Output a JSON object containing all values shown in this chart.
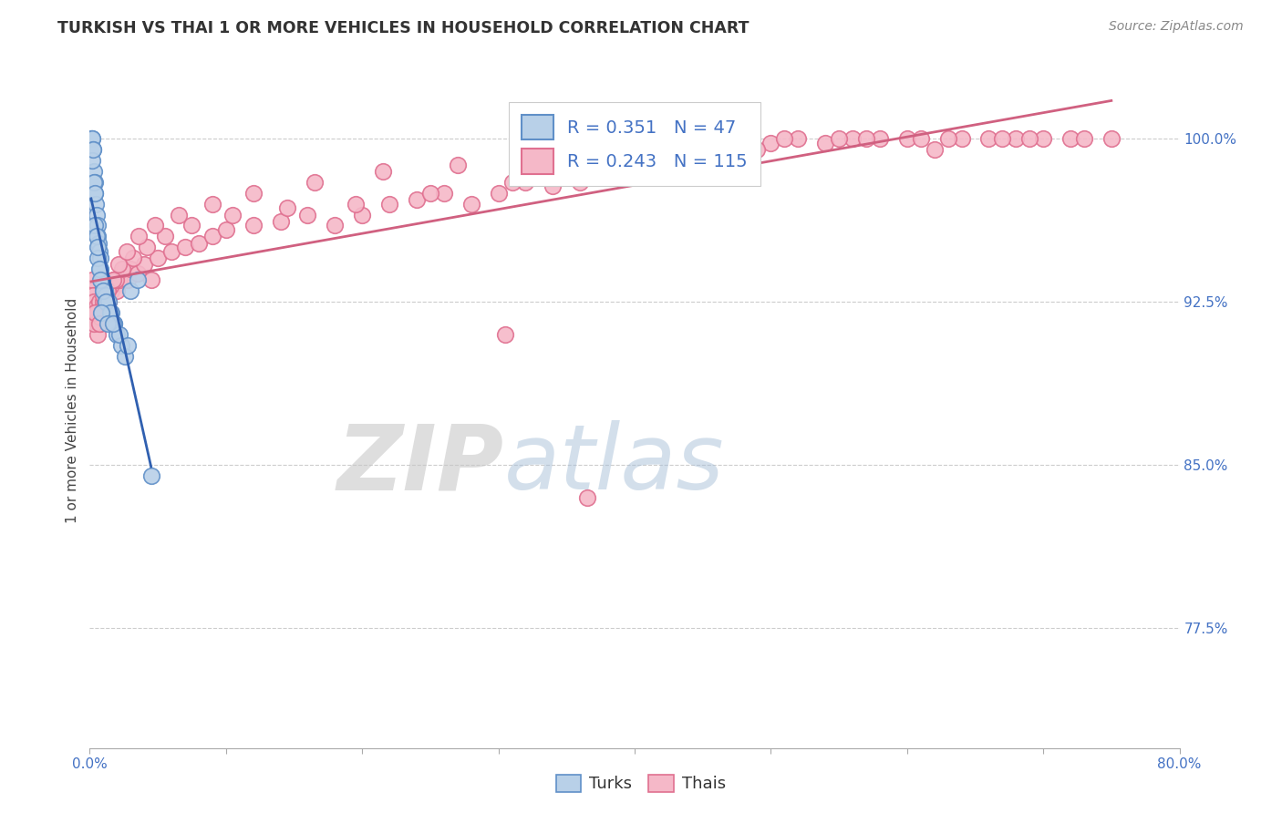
{
  "title": "TURKISH VS THAI 1 OR MORE VEHICLES IN HOUSEHOLD CORRELATION CHART",
  "source": "Source: ZipAtlas.com",
  "ylabel": "1 or more Vehicles in Household",
  "xlim": [
    0.0,
    80.0
  ],
  "ylim": [
    72.0,
    103.0
  ],
  "yticks": [
    77.5,
    85.0,
    92.5,
    100.0
  ],
  "ytick_labels": [
    "77.5%",
    "85.0%",
    "92.5%",
    "100.0%"
  ],
  "turks_R": "0.351",
  "turks_N": "47",
  "thais_R": "0.243",
  "thais_N": "115",
  "turks_color": "#b8d0e8",
  "thais_color": "#f5b8c8",
  "turks_edge_color": "#6090c8",
  "thais_edge_color": "#e07090",
  "turks_line_color": "#3060b0",
  "thais_line_color": "#d06080",
  "legend_label_turks": "Turks",
  "legend_label_thais": "Thais",
  "turks_x": [
    0.1,
    0.15,
    0.2,
    0.25,
    0.3,
    0.35,
    0.4,
    0.45,
    0.5,
    0.55,
    0.6,
    0.65,
    0.7,
    0.75,
    0.8,
    0.9,
    1.0,
    1.1,
    1.2,
    1.4,
    1.6,
    1.8,
    2.0,
    2.3,
    2.6,
    3.0,
    0.2,
    0.3,
    0.4,
    0.5,
    0.6,
    0.7,
    0.8,
    1.0,
    1.2,
    1.5,
    1.8,
    2.2,
    2.8,
    3.5,
    0.25,
    0.35,
    0.55,
    0.85,
    1.3,
    1.7,
    4.5
  ],
  "turks_y": [
    100.0,
    100.0,
    100.0,
    99.5,
    98.5,
    98.0,
    97.5,
    97.0,
    96.5,
    96.0,
    95.5,
    95.2,
    94.8,
    94.5,
    94.0,
    93.5,
    93.2,
    93.0,
    92.8,
    92.5,
    92.0,
    91.5,
    91.0,
    90.5,
    90.0,
    93.0,
    99.0,
    98.0,
    96.0,
    95.5,
    94.5,
    94.0,
    93.5,
    93.0,
    92.5,
    92.0,
    91.5,
    91.0,
    90.5,
    93.5,
    99.5,
    97.5,
    95.0,
    92.0,
    91.5,
    91.5,
    84.5
  ],
  "thais_x": [
    0.1,
    0.15,
    0.2,
    0.25,
    0.3,
    0.35,
    0.4,
    0.45,
    0.5,
    0.55,
    0.6,
    0.65,
    0.7,
    0.75,
    0.8,
    0.9,
    1.0,
    1.1,
    1.2,
    1.4,
    1.6,
    1.8,
    2.0,
    2.2,
    2.5,
    2.8,
    3.0,
    3.5,
    4.0,
    4.5,
    5.0,
    6.0,
    7.0,
    8.0,
    9.0,
    10.0,
    12.0,
    14.0,
    16.0,
    18.0,
    20.0,
    22.0,
    24.0,
    26.0,
    28.0,
    30.0,
    32.0,
    34.0,
    36.0,
    38.0,
    40.0,
    42.0,
    44.0,
    46.0,
    48.0,
    50.0,
    52.0,
    54.0,
    56.0,
    58.0,
    60.0,
    62.0,
    64.0,
    66.0,
    68.0,
    70.0,
    72.0,
    0.3,
    0.5,
    0.8,
    1.1,
    1.5,
    1.9,
    2.4,
    3.2,
    4.2,
    5.5,
    7.5,
    10.5,
    14.5,
    19.5,
    25.0,
    31.0,
    37.0,
    43.0,
    49.0,
    55.0,
    61.0,
    67.0,
    73.0,
    0.4,
    0.7,
    1.0,
    1.3,
    1.7,
    2.1,
    2.7,
    3.6,
    4.8,
    6.5,
    9.0,
    12.0,
    16.5,
    21.5,
    27.0,
    33.0,
    39.0,
    45.0,
    51.0,
    57.0,
    63.0,
    69.0,
    75.0,
    30.5,
    36.5
  ],
  "thais_y": [
    93.0,
    92.5,
    93.5,
    92.8,
    92.5,
    92.0,
    91.5,
    91.8,
    92.3,
    91.5,
    91.0,
    91.8,
    92.5,
    92.0,
    91.5,
    92.0,
    92.5,
    92.8,
    93.0,
    92.5,
    93.0,
    93.5,
    93.0,
    93.5,
    94.0,
    93.5,
    94.0,
    93.8,
    94.2,
    93.5,
    94.5,
    94.8,
    95.0,
    95.2,
    95.5,
    95.8,
    96.0,
    96.2,
    96.5,
    96.0,
    96.5,
    97.0,
    97.2,
    97.5,
    97.0,
    97.5,
    98.0,
    97.8,
    98.0,
    98.5,
    98.8,
    99.0,
    99.2,
    99.5,
    99.5,
    99.8,
    100.0,
    99.8,
    100.0,
    100.0,
    100.0,
    99.5,
    100.0,
    100.0,
    100.0,
    100.0,
    100.0,
    91.5,
    92.0,
    91.8,
    92.5,
    93.2,
    93.5,
    94.0,
    94.5,
    95.0,
    95.5,
    96.0,
    96.5,
    96.8,
    97.0,
    97.5,
    98.0,
    98.5,
    99.0,
    99.5,
    100.0,
    100.0,
    100.0,
    100.0,
    92.0,
    91.5,
    92.8,
    93.0,
    93.5,
    94.2,
    94.8,
    95.5,
    96.0,
    96.5,
    97.0,
    97.5,
    98.0,
    98.5,
    98.8,
    99.2,
    99.5,
    99.8,
    100.0,
    100.0,
    100.0,
    100.0,
    100.0,
    91.0,
    83.5
  ],
  "turks_line_x": [
    0.1,
    4.5
  ],
  "thais_line_x": [
    0.1,
    75.0
  ],
  "watermark_zip": "ZIP",
  "watermark_atlas": "atlas",
  "background_color": "#ffffff"
}
